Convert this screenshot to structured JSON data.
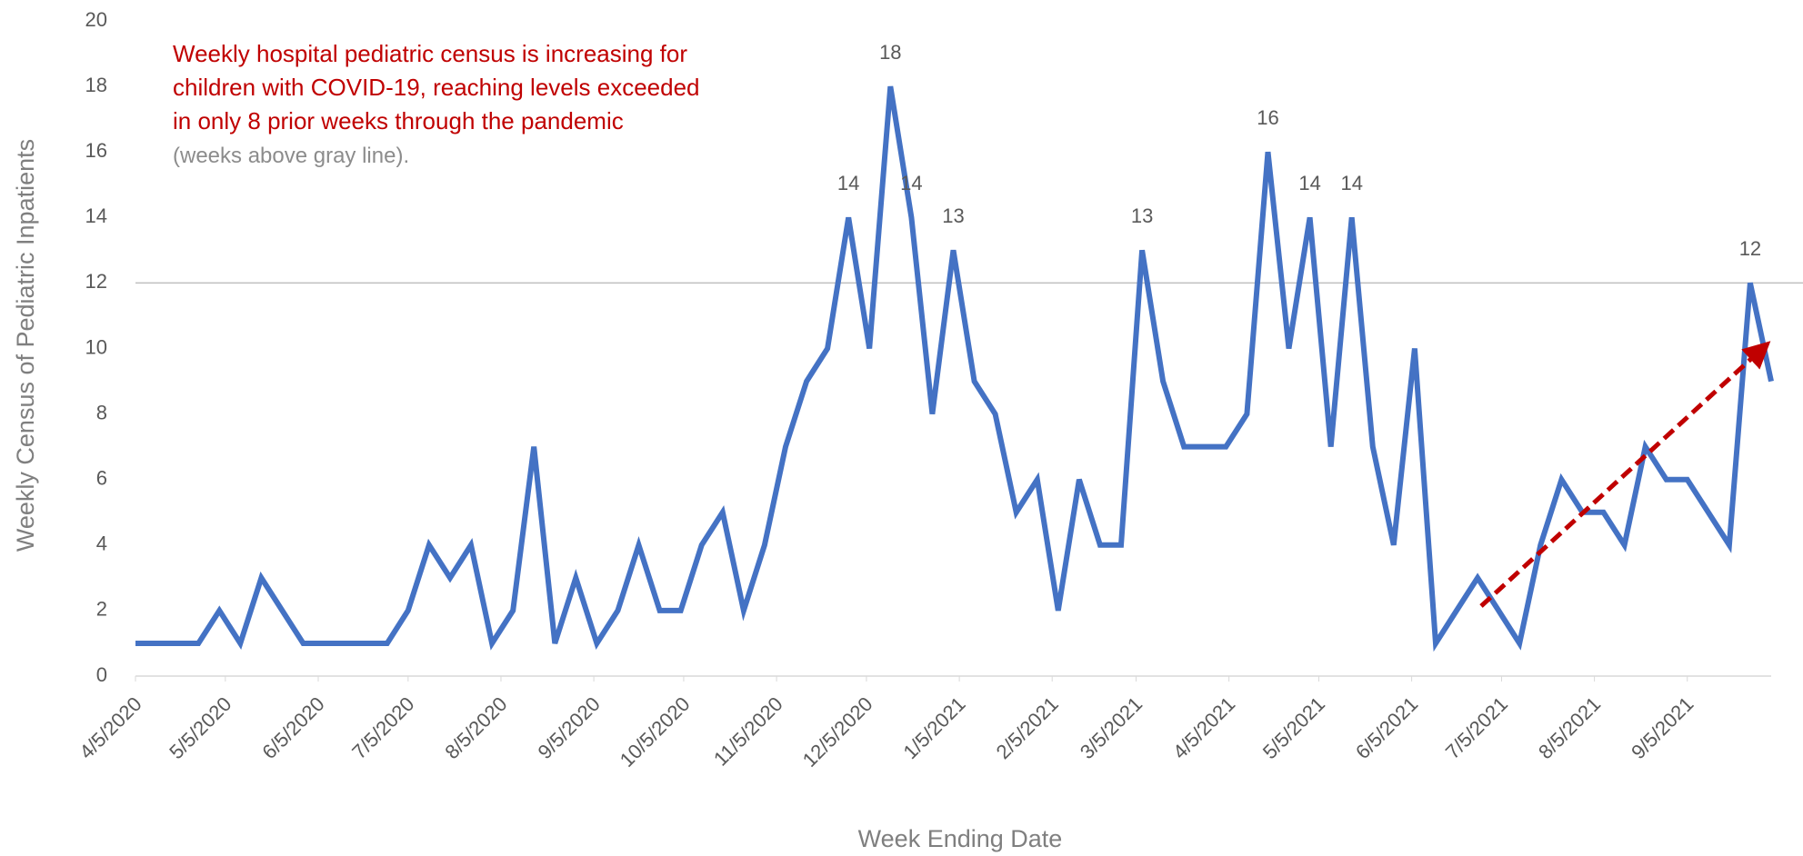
{
  "chart_data": {
    "type": "line",
    "annotation": [
      "Weekly hospital pediatric census is increasing for",
      "children with COVID-19, reaching levels exceeded",
      "in only 8 prior weeks through the pandemic"
    ],
    "annotation_note": "(weeks above gray line).",
    "x_label": "Week Ending Date",
    "y_label": "Weekly Census of Pediatric Inpatients",
    "x": [
      "2020-04-05",
      "2020-04-12",
      "2020-04-19",
      "2020-04-26",
      "2020-05-03",
      "2020-05-10",
      "2020-05-17",
      "2020-05-24",
      "2020-05-31",
      "2020-06-07",
      "2020-06-14",
      "2020-06-21",
      "2020-06-28",
      "2020-07-05",
      "2020-07-12",
      "2020-07-19",
      "2020-07-26",
      "2020-08-02",
      "2020-08-09",
      "2020-08-16",
      "2020-08-23",
      "2020-08-30",
      "2020-09-06",
      "2020-09-13",
      "2020-09-20",
      "2020-09-27",
      "2020-10-04",
      "2020-10-11",
      "2020-10-18",
      "2020-10-25",
      "2020-11-01",
      "2020-11-08",
      "2020-11-15",
      "2020-11-22",
      "2020-11-29",
      "2020-12-06",
      "2020-12-13",
      "2020-12-20",
      "2020-12-27",
      "2021-01-03",
      "2021-01-10",
      "2021-01-17",
      "2021-01-24",
      "2021-01-31",
      "2021-02-07",
      "2021-02-14",
      "2021-02-21",
      "2021-02-28",
      "2021-03-07",
      "2021-03-14",
      "2021-03-21",
      "2021-03-28",
      "2021-04-04",
      "2021-04-11",
      "2021-04-18",
      "2021-04-25",
      "2021-05-02",
      "2021-05-09",
      "2021-05-16",
      "2021-05-23",
      "2021-05-30",
      "2021-06-06",
      "2021-06-13",
      "2021-06-20",
      "2021-06-27",
      "2021-07-04",
      "2021-07-11",
      "2021-07-18",
      "2021-07-25",
      "2021-08-01",
      "2021-08-08",
      "2021-08-15",
      "2021-08-22",
      "2021-08-29",
      "2021-09-05",
      "2021-09-12",
      "2021-09-19",
      "2021-09-26",
      "2021-10-03"
    ],
    "values": [
      1,
      1,
      1,
      1,
      2,
      1,
      3,
      2,
      1,
      1,
      1,
      1,
      1,
      2,
      4,
      3,
      4,
      1,
      2,
      7,
      1,
      3,
      1,
      2,
      4,
      2,
      2,
      4,
      5,
      2,
      4,
      7,
      9,
      10,
      14,
      10,
      18,
      14,
      8,
      13,
      9,
      8,
      5,
      6,
      2,
      6,
      4,
      4,
      13,
      9,
      7,
      7,
      7,
      8,
      16,
      10,
      14,
      7,
      14,
      7,
      4,
      10,
      1,
      2,
      3,
      2,
      1,
      4,
      6,
      5,
      5,
      4,
      7,
      6,
      6,
      5,
      4,
      12,
      9
    ],
    "value_labels": [
      null,
      null,
      null,
      null,
      null,
      null,
      null,
      null,
      null,
      null,
      null,
      null,
      null,
      null,
      null,
      null,
      null,
      null,
      null,
      null,
      null,
      null,
      null,
      null,
      null,
      null,
      null,
      null,
      null,
      null,
      null,
      null,
      null,
      null,
      "14",
      null,
      "18",
      "14",
      null,
      "13",
      null,
      null,
      null,
      null,
      null,
      null,
      null,
      null,
      "13",
      null,
      null,
      null,
      null,
      null,
      "16",
      null,
      "14",
      null,
      "14",
      null,
      null,
      null,
      null,
      null,
      null,
      null,
      null,
      null,
      null,
      null,
      null,
      null,
      null,
      null,
      null,
      null,
      null,
      "12",
      null
    ],
    "color": "#4472c4",
    "reference_line": 12,
    "reference_color": "#bfbfbf",
    "xlim": [
      "2020-04-05",
      "2021-10-03"
    ],
    "xticks": [
      {
        "value": "2020-04-05",
        "label": "4/5/2020"
      },
      {
        "value": "2020-05-05",
        "label": "5/5/2020"
      },
      {
        "value": "2020-06-05",
        "label": "6/5/2020"
      },
      {
        "value": "2020-07-05",
        "label": "7/5/2020"
      },
      {
        "value": "2020-08-05",
        "label": "8/5/2020"
      },
      {
        "value": "2020-09-05",
        "label": "9/5/2020"
      },
      {
        "value": "2020-10-05",
        "label": "10/5/2020"
      },
      {
        "value": "2020-11-05",
        "label": "11/5/2020"
      },
      {
        "value": "2020-12-05",
        "label": "12/5/2020"
      },
      {
        "value": "2021-01-05",
        "label": "1/5/2021"
      },
      {
        "value": "2021-02-05",
        "label": "2/5/2021"
      },
      {
        "value": "2021-03-05",
        "label": "3/5/2021"
      },
      {
        "value": "2021-04-05",
        "label": "4/5/2021"
      },
      {
        "value": "2021-05-05",
        "label": "5/5/2021"
      },
      {
        "value": "2021-06-05",
        "label": "6/5/2021"
      },
      {
        "value": "2021-07-05",
        "label": "7/5/2021"
      },
      {
        "value": "2021-08-05",
        "label": "8/5/2021"
      },
      {
        "value": "2021-09-05",
        "label": "9/5/2021"
      }
    ],
    "ylim": [
      0,
      20
    ],
    "yticks": [
      0,
      2,
      4,
      6,
      8,
      10,
      12,
      14,
      16,
      18,
      20
    ],
    "grid": false
  }
}
